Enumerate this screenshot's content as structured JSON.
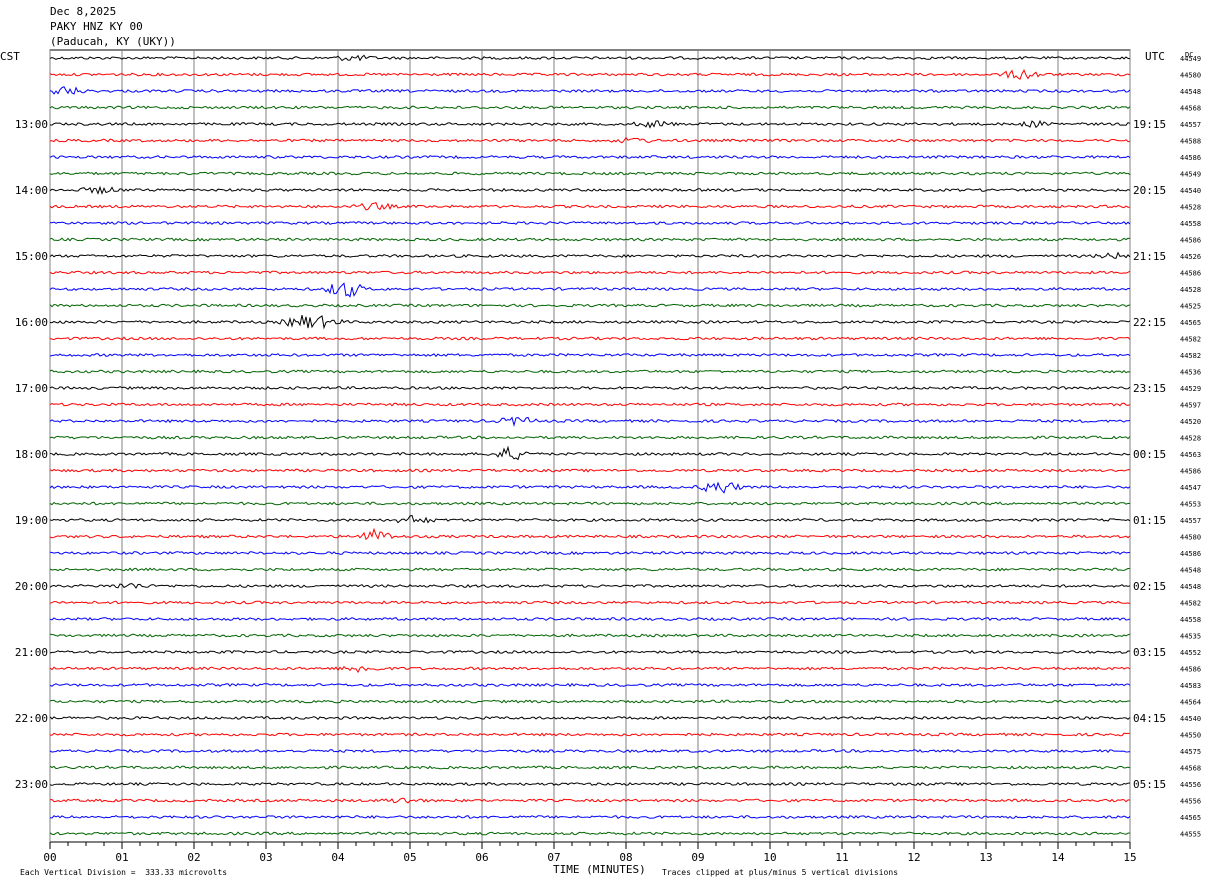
{
  "header": {
    "date": "Dec 8,2025",
    "station": "PAKY HNZ KY 00",
    "location": "(Paducah, KY (UKY))"
  },
  "left_tz": "CST",
  "right_tz": "UTC",
  "dc_label": "DC",
  "footer": {
    "scale_note": "Each Vertical Division =  333.33 microvolts",
    "x_title": "TIME (MINUTES)",
    "clip_note": "Traces clipped at plus/minus 5 vertical divisions"
  },
  "colors": {
    "black": "#000000",
    "red": "#ff0000",
    "blue": "#0000ff",
    "green": "#006400",
    "grid": "#808080"
  },
  "chart_data": {
    "type": "line",
    "xlabel": "TIME (MINUTES)",
    "x_ticks": [
      "00",
      "01",
      "02",
      "03",
      "04",
      "05",
      "06",
      "07",
      "08",
      "09",
      "10",
      "11",
      "12",
      "13",
      "14",
      "15"
    ],
    "xlim": [
      0,
      15
    ],
    "left_time_labels": [
      "13:00",
      "14:00",
      "15:00",
      "16:00",
      "17:00",
      "18:00",
      "19:00",
      "20:00",
      "21:00",
      "22:00",
      "23:00"
    ],
    "right_time_labels": [
      "19:15",
      "20:15",
      "21:15",
      "22:15",
      "23:15",
      "00:15",
      "01:15",
      "02:15",
      "03:15",
      "04:15",
      "05:15"
    ],
    "trace_colors": [
      "black",
      "red",
      "blue",
      "green"
    ],
    "dc_offsets": [
      "44549",
      "44580",
      "44548",
      "44568",
      "44557",
      "44588",
      "44586",
      "44549",
      "44540",
      "44528",
      "44558",
      "44586",
      "44526",
      "44586",
      "44528",
      "44525",
      "44565",
      "44582",
      "44582",
      "44536",
      "44529",
      "44597",
      "44520",
      "44528",
      "44563",
      "44586",
      "44547",
      "44553",
      "44557",
      "44580",
      "44586",
      "44548",
      "44548",
      "44582",
      "44558",
      "44535",
      "44552",
      "44586",
      "44583",
      "44564",
      "44540",
      "44550",
      "44575",
      "44568",
      "44556",
      "44556",
      "44565",
      "44555"
    ],
    "events": [
      {
        "trace": 0,
        "minute": 4.2,
        "amp": 1.0
      },
      {
        "trace": 1,
        "minute": 13.5,
        "amp": 2.0
      },
      {
        "trace": 2,
        "minute": 0.2,
        "amp": 1.8
      },
      {
        "trace": 4,
        "minute": 8.4,
        "amp": 1.2
      },
      {
        "trace": 4,
        "minute": 13.7,
        "amp": 1.0
      },
      {
        "trace": 5,
        "minute": 8.1,
        "amp": 1.0
      },
      {
        "trace": 8,
        "minute": 0.7,
        "amp": 1.2
      },
      {
        "trace": 9,
        "minute": 4.5,
        "amp": 1.3
      },
      {
        "trace": 12,
        "minute": 14.8,
        "amp": 1.0
      },
      {
        "trace": 14,
        "minute": 4.1,
        "amp": 3.5
      },
      {
        "trace": 16,
        "minute": 3.5,
        "amp": 2.4
      },
      {
        "trace": 16,
        "minute": 3.8,
        "amp": 1.6
      },
      {
        "trace": 22,
        "minute": 6.5,
        "amp": 1.6
      },
      {
        "trace": 24,
        "minute": 6.4,
        "amp": 2.6
      },
      {
        "trace": 26,
        "minute": 9.3,
        "amp": 2.8
      },
      {
        "trace": 28,
        "minute": 5.05,
        "amp": 1.6
      },
      {
        "trace": 29,
        "minute": 4.5,
        "amp": 2.6
      },
      {
        "trace": 32,
        "minute": 1.1,
        "amp": 1.0
      },
      {
        "trace": 37,
        "minute": 4.3,
        "amp": 1.4
      },
      {
        "trace": 45,
        "minute": 4.9,
        "amp": 1.0
      }
    ]
  }
}
